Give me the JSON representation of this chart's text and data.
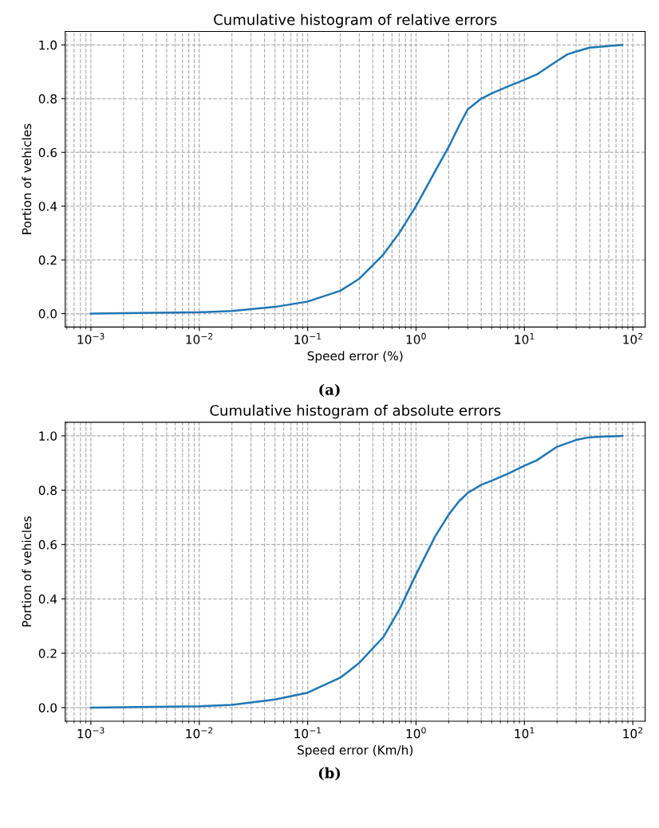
{
  "chart_data": [
    {
      "type": "line",
      "title": "Cumulative histogram of relative errors",
      "xlabel": "Speed error (%)",
      "ylabel": "Portion of vehicles",
      "annotations": [
        "(a)"
      ],
      "log": "x",
      "grid": true,
      "marker": "none",
      "line_style": "solid",
      "xlim": [
        0.00058,
        130
      ],
      "ylim": [
        -0.05,
        1.05
      ],
      "xticks": [
        {
          "value": 0.001,
          "label": "10$^{−3}$"
        },
        {
          "value": 0.01,
          "label": "10$^{−2}$"
        },
        {
          "value": 0.1,
          "label": "10$^{−1}$"
        },
        {
          "value": 1,
          "label": "10$^{0}$"
        },
        {
          "value": 10,
          "label": "10$^{1}$"
        },
        {
          "value": 100,
          "label": "10$^{2}$"
        }
      ],
      "yticks": [
        {
          "value": 0,
          "label": "0.0"
        },
        {
          "value": 0.2,
          "label": "0.2"
        },
        {
          "value": 0.4,
          "label": "0.4"
        },
        {
          "value": 0.6,
          "label": "0.6"
        },
        {
          "value": 0.8,
          "label": "0.8"
        },
        {
          "value": 1,
          "label": "1.0"
        }
      ],
      "series": [
        {
          "color": "#1f77b4",
          "x": [
            0.001,
            0.01,
            0.02,
            0.05,
            0.1,
            0.2,
            0.3,
            0.5,
            0.7,
            1,
            1.5,
            2,
            2.5,
            3,
            4,
            5,
            7,
            10,
            13,
            20,
            25,
            30,
            40,
            80
          ],
          "values": [
            0.0,
            0.005,
            0.01,
            0.025,
            0.045,
            0.085,
            0.13,
            0.22,
            0.3,
            0.4,
            0.53,
            0.62,
            0.7,
            0.76,
            0.8,
            0.82,
            0.845,
            0.87,
            0.89,
            0.94,
            0.965,
            0.975,
            0.99,
            1.0
          ]
        }
      ]
    },
    {
      "type": "line",
      "title": "Cumulative histogram of absolute errors",
      "xlabel": "Speed error (Km/h)",
      "ylabel": "Portion of vehicles",
      "annotations": [
        "(b)"
      ],
      "log": "x",
      "grid": true,
      "marker": "none",
      "line_style": "solid",
      "xlim": [
        0.00058,
        130
      ],
      "ylim": [
        -0.05,
        1.05
      ],
      "xticks": [
        {
          "value": 0.001,
          "label": "10$^{−3}$"
        },
        {
          "value": 0.01,
          "label": "10$^{−2}$"
        },
        {
          "value": 0.1,
          "label": "10$^{−1}$"
        },
        {
          "value": 1,
          "label": "10$^{0}$"
        },
        {
          "value": 10,
          "label": "10$^{1}$"
        },
        {
          "value": 100,
          "label": "10$^{2}$"
        }
      ],
      "yticks": [
        {
          "value": 0,
          "label": "0.0"
        },
        {
          "value": 0.2,
          "label": "0.2"
        },
        {
          "value": 0.4,
          "label": "0.4"
        },
        {
          "value": 0.6,
          "label": "0.6"
        },
        {
          "value": 0.8,
          "label": "0.8"
        },
        {
          "value": 1,
          "label": "1.0"
        }
      ],
      "series": [
        {
          "color": "#1f77b4",
          "x": [
            0.001,
            0.01,
            0.02,
            0.05,
            0.1,
            0.2,
            0.3,
            0.5,
            0.7,
            1,
            1.5,
            2,
            2.5,
            3,
            4,
            5,
            7,
            10,
            13,
            20,
            30,
            40,
            80
          ],
          "values": [
            0.0,
            0.005,
            0.01,
            0.03,
            0.055,
            0.11,
            0.165,
            0.26,
            0.36,
            0.49,
            0.63,
            0.71,
            0.76,
            0.79,
            0.82,
            0.835,
            0.86,
            0.89,
            0.91,
            0.96,
            0.985,
            0.995,
            1.0
          ]
        }
      ]
    }
  ]
}
